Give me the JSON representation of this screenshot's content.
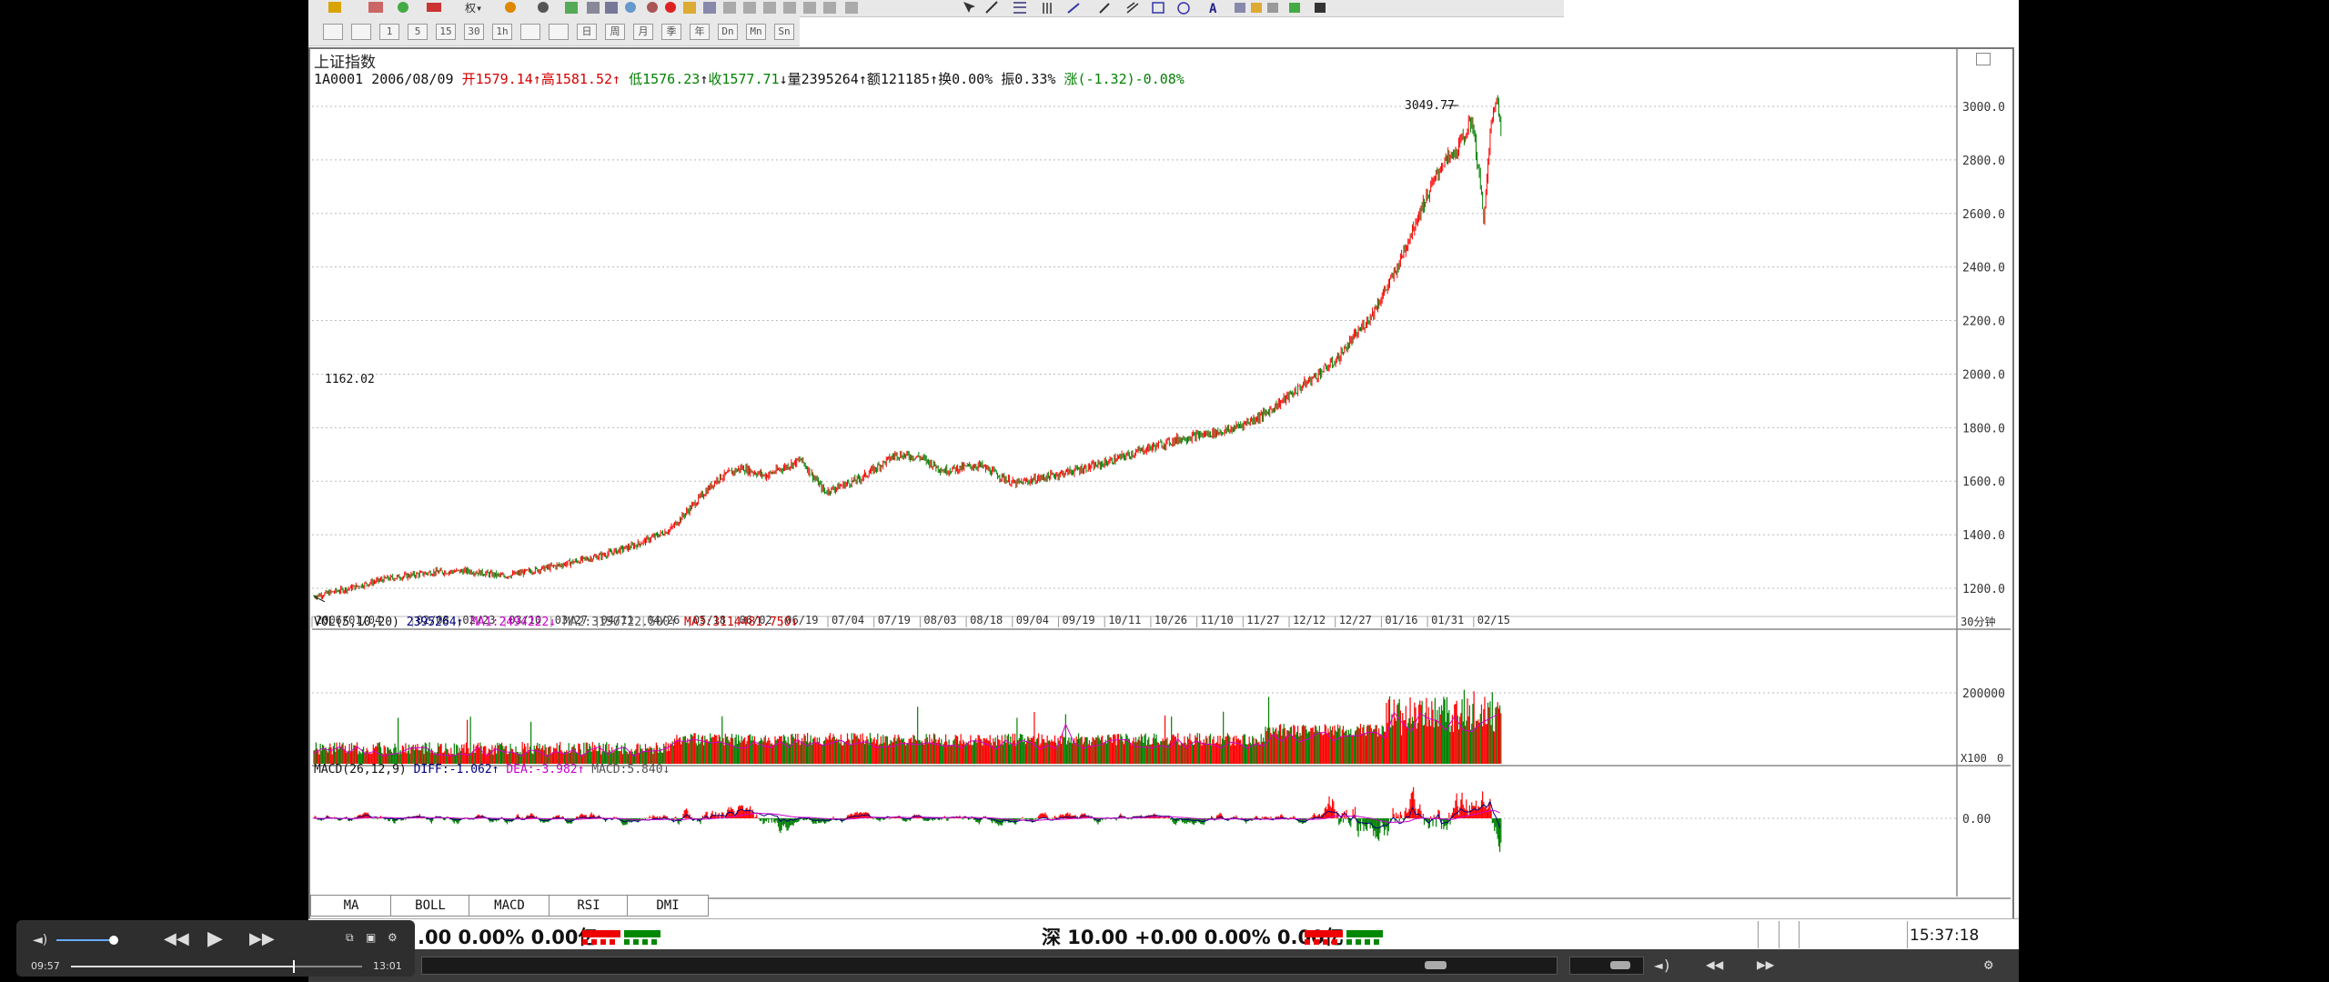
{
  "app": {
    "symbol_name": "上证指数",
    "info_line": {
      "code_date": "1A0001 2006/08/09",
      "open": "开1579.14",
      "high": "高1581.52",
      "low": "低1576.23",
      "close": "收1577.71",
      "volume": "量2395264",
      "amount": "额121185",
      "turnover": "换0.00%",
      "amplitude": "振0.33%",
      "change": "涨(-1.32)-0.08%"
    },
    "period_label": "30分钟"
  },
  "toolbar": {
    "row2_buttons": [
      "",
      "",
      "1",
      "5",
      "15",
      "30",
      "1h",
      "",
      "",
      "日",
      "周",
      "月",
      "季",
      "年",
      "Dn",
      "Mn",
      "Sn"
    ]
  },
  "price_panel": {
    "y_ticks": [
      "3000.0",
      "2800.0",
      "2600.0",
      "2400.0",
      "2200.0",
      "2000.0",
      "1800.0",
      "1600.0",
      "1400.0",
      "1200.0"
    ],
    "max_label": "3049.77",
    "min_label": "1162.02",
    "x_dates": [
      "2006/01/04",
      "02/08",
      "02/23",
      "03/10",
      "03/27",
      "04/11",
      "04/26",
      "05/18",
      "06/02",
      "06/19",
      "07/04",
      "07/19",
      "08/03",
      "08/18",
      "09/04",
      "09/19",
      "10/11",
      "10/26",
      "11/10",
      "11/27",
      "12/12",
      "12/27",
      "01/16",
      "01/31",
      "02/15"
    ]
  },
  "volume_panel": {
    "header": "VOL(5,10,20)",
    "vol": "2395264",
    "ma1": "MA1:2494222",
    "ma2": "MA2:3150722.500",
    "ma3": "MA3:3114481.750",
    "y_tick": "200000",
    "unit": "X100",
    "zero": "0"
  },
  "macd_panel": {
    "header": "MACD(26,12,9)",
    "diff": "DIFF:-1.062",
    "dea": "DEA:-3.982",
    "macd": "MACD:5.840",
    "y_tick": "0.00"
  },
  "indicator_tabs": [
    "MA",
    "BOLL",
    "MACD",
    "RSI",
    "DMI"
  ],
  "status": {
    "left_text": ".00 0.00% 0.00亿",
    "mid_text": "深 10.00 +0.00 0.00% 0.00亿",
    "time": "15:37:18"
  },
  "player": {
    "elapsed": "09:57",
    "total": "13:01",
    "progress": 0.764
  },
  "colors": {
    "up": "#ff0000",
    "down": "#008000",
    "ma1": "#cc00cc",
    "ma2": "#555555",
    "ma3": "#cc0000"
  }
}
